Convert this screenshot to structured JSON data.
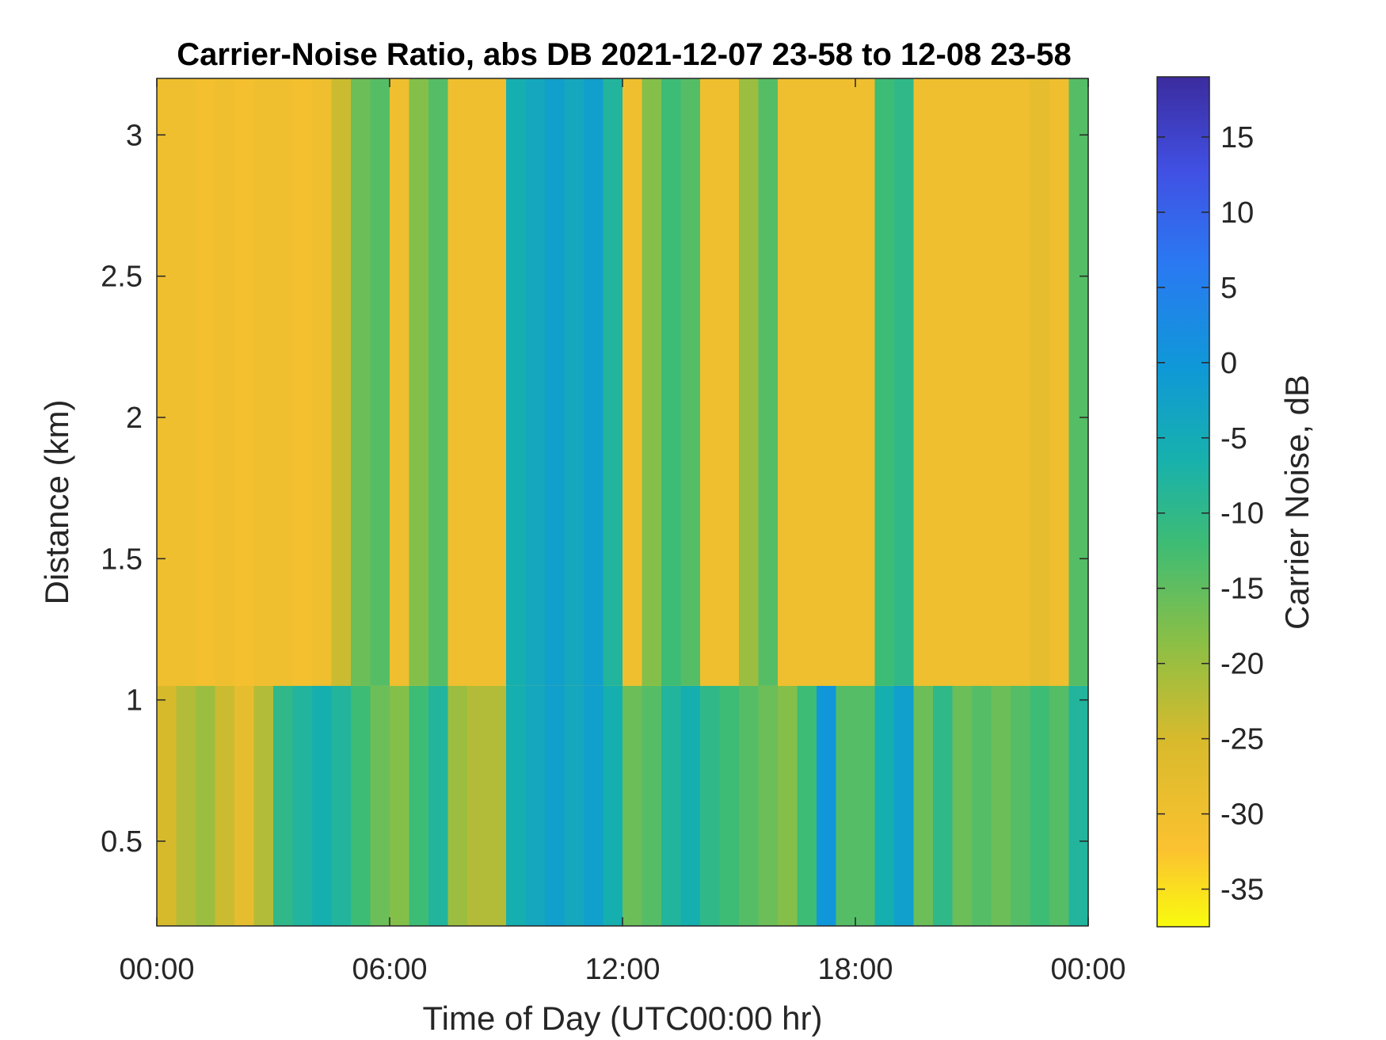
{
  "chart_data": {
    "type": "heatmap",
    "title": "Carrier-Noise Ratio, abs DB 2021-12-07 23-58 to 12-08 23-58",
    "xlabel": "Time of Day (UTC00:00 hr)",
    "ylabel": "Distance (km)",
    "xlim": [
      0,
      24
    ],
    "ylim": [
      0.2,
      3.2
    ],
    "x_ticks": [
      0,
      6,
      12,
      18,
      24
    ],
    "x_tick_labels": [
      "00:00",
      "06:00",
      "12:00",
      "18:00",
      "00:00"
    ],
    "y_ticks": [
      0.5,
      1,
      1.5,
      2,
      2.5,
      3
    ],
    "y_tick_labels": [
      "0.5",
      "1",
      "1.5",
      "2",
      "2.5",
      "3"
    ],
    "colorbar": {
      "label": "Carrier Noise, dB",
      "range": [
        -37.5,
        19
      ],
      "ticks": [
        15,
        10,
        5,
        0,
        -5,
        -10,
        -15,
        -20,
        -25,
        -30,
        -35
      ],
      "tick_labels": [
        "15",
        "10",
        "5",
        "0",
        "-5",
        "-10",
        "-15",
        "-20",
        "-25",
        "-30",
        "-35"
      ],
      "colormap": "parula-reversed"
    },
    "summary_columns": {
      "x_hours": [
        0.0,
        0.5,
        1.0,
        1.5,
        2.0,
        2.5,
        3.0,
        3.5,
        4.0,
        4.5,
        5.0,
        5.5,
        6.0,
        6.5,
        7.0,
        7.5,
        8.0,
        8.5,
        9.0,
        9.5,
        10.0,
        10.5,
        11.0,
        11.5,
        12.0,
        12.5,
        13.0,
        13.5,
        14.0,
        14.5,
        15.0,
        15.5,
        16.0,
        16.5,
        17.0,
        17.5,
        18.0,
        18.5,
        19.0,
        19.5,
        20.0,
        20.5,
        21.0,
        21.5,
        22.0,
        22.5,
        23.0,
        23.5
      ],
      "low_range_db": [
        -25,
        -22,
        -20,
        -24,
        -28,
        -22,
        -10,
        -8,
        -6,
        -8,
        -12,
        -16,
        -18,
        -12,
        -8,
        -20,
        -22,
        -22,
        -6,
        -4,
        -2,
        -4,
        -2,
        -6,
        -16,
        -14,
        -8,
        -6,
        -10,
        -12,
        -14,
        -16,
        -18,
        -12,
        0,
        -14,
        -14,
        -6,
        -2,
        -16,
        -10,
        -16,
        -14,
        -16,
        -14,
        -12,
        -14,
        -8
      ],
      "high_range_db": [
        -30,
        -30,
        -31,
        -30,
        -31,
        -30,
        -30,
        -31,
        -30,
        -24,
        -16,
        -14,
        -30,
        -18,
        -14,
        -30,
        -30,
        -30,
        -6,
        -4,
        -2,
        -4,
        -2,
        -8,
        -30,
        -18,
        -12,
        -14,
        -30,
        -30,
        -20,
        -14,
        -30,
        -30,
        -30,
        -30,
        -30,
        -12,
        -10,
        -30,
        -30,
        -30,
        -30,
        -30,
        -30,
        -28,
        -30,
        -14
      ]
    }
  }
}
